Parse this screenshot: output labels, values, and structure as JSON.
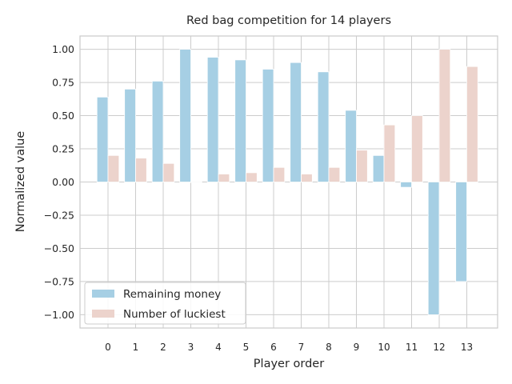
{
  "chart_data": {
    "type": "bar",
    "title": "Red bag competition for 14 players",
    "xlabel": "Player order",
    "ylabel": "Normalized value",
    "categories": [
      "0",
      "1",
      "2",
      "3",
      "4",
      "5",
      "6",
      "7",
      "8",
      "9",
      "10",
      "11",
      "12",
      "13"
    ],
    "ylim": [
      -1.1,
      1.1
    ],
    "yticks": [
      -1.0,
      -0.75,
      -0.5,
      -0.25,
      0.0,
      0.25,
      0.5,
      0.75,
      1.0
    ],
    "ytick_labels": [
      "−1.00",
      "−0.75",
      "−0.50",
      "−0.25",
      "0.00",
      "0.25",
      "0.50",
      "0.75",
      "1.00"
    ],
    "grid": true,
    "legend_position": "lower-left",
    "series": [
      {
        "name": "Remaining money",
        "color": "#a6cfe4",
        "values": [
          0.64,
          0.7,
          0.76,
          1.0,
          0.94,
          0.92,
          0.85,
          0.9,
          0.83,
          0.54,
          0.2,
          -0.04,
          -1.0,
          -0.75
        ]
      },
      {
        "name": "Number of luckiest",
        "color": "#ecd3cc",
        "values": [
          0.2,
          0.18,
          0.14,
          0.0,
          0.06,
          0.07,
          0.11,
          0.06,
          0.11,
          0.24,
          0.43,
          0.5,
          1.0,
          0.87
        ]
      }
    ]
  }
}
